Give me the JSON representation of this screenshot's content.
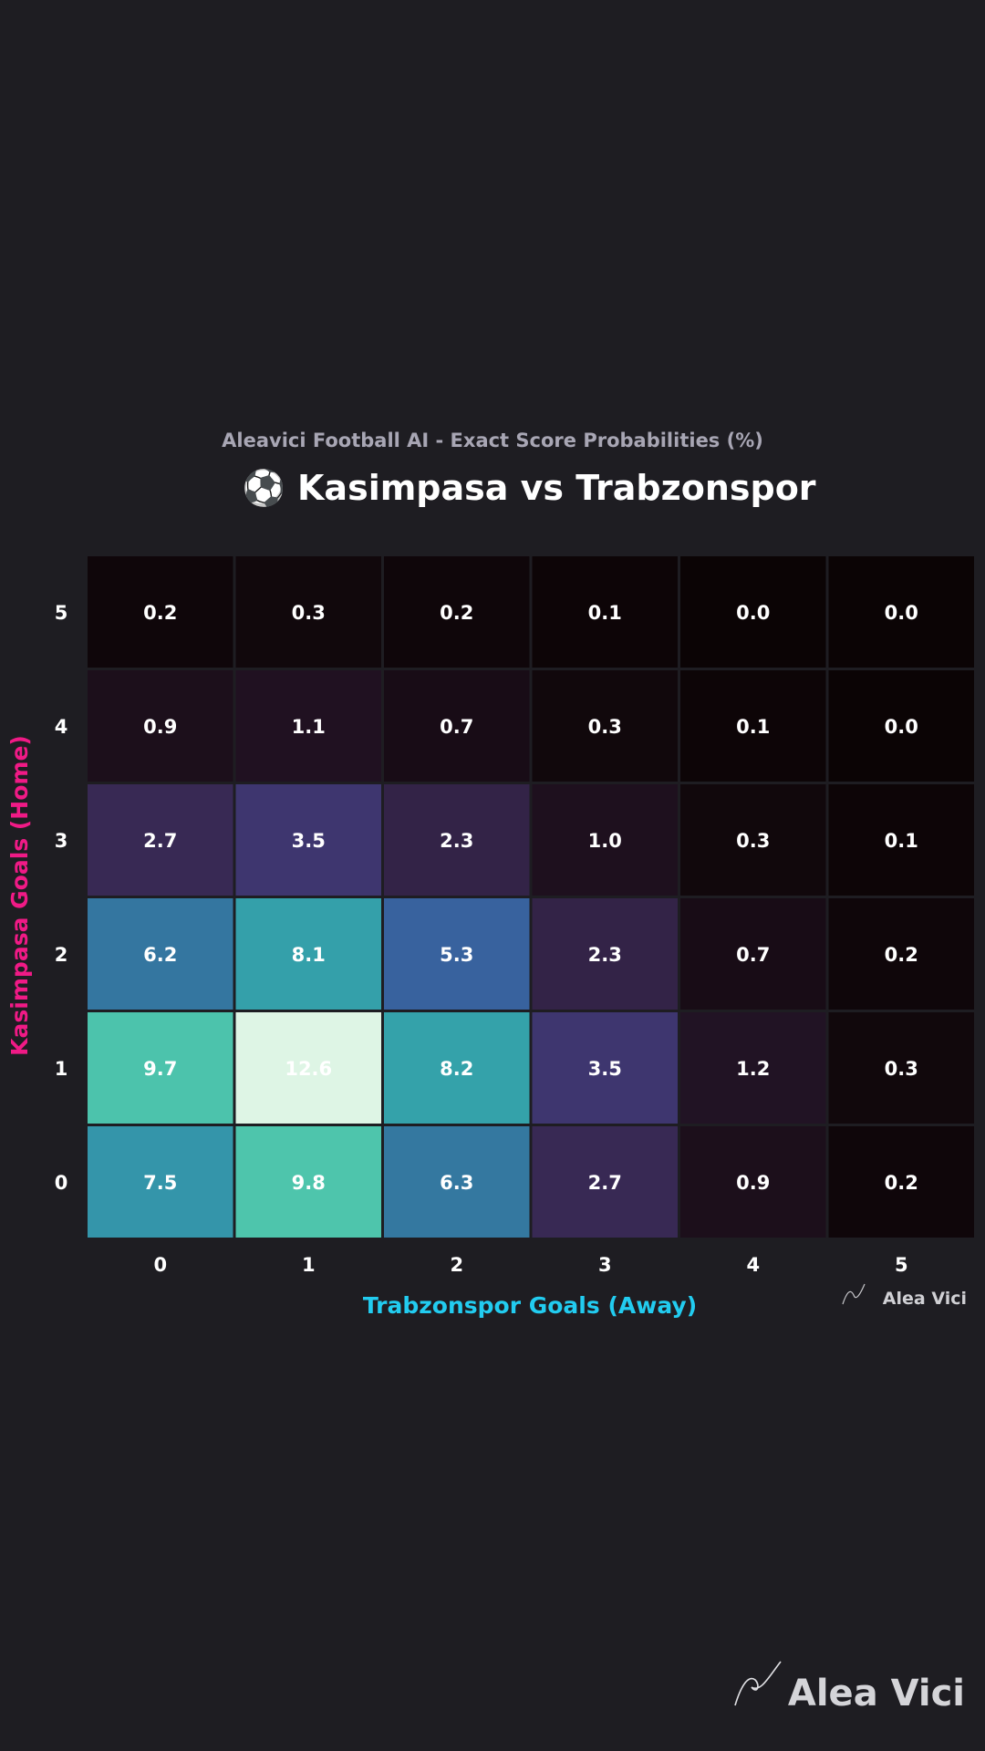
{
  "chart_data": {
    "type": "heatmap",
    "subtitle": "Aleavici Football AI - Exact Score Probabilities (%)",
    "title": "⚽ Kasimpasa vs Trabzonspor",
    "xlabel": "Trabzonspor Goals (Away)",
    "ylabel": "Kasimpasa Goals (Home)",
    "x_ticks": [
      "0",
      "1",
      "2",
      "3",
      "4",
      "5"
    ],
    "y_ticks": [
      "5",
      "4",
      "3",
      "2",
      "1",
      "0"
    ],
    "value_range": [
      0,
      12.6
    ],
    "rows": [
      {
        "home_goals": "5",
        "values": [
          0.2,
          0.3,
          0.2,
          0.1,
          0.0,
          0.0
        ],
        "labels": [
          "0.2",
          "0.3",
          "0.2",
          "0.1",
          "0.0",
          "0.0"
        ]
      },
      {
        "home_goals": "4",
        "values": [
          0.9,
          1.1,
          0.7,
          0.3,
          0.1,
          0.0
        ],
        "labels": [
          "0.9",
          "1.1",
          "0.7",
          "0.3",
          "0.1",
          "0.0"
        ]
      },
      {
        "home_goals": "3",
        "values": [
          2.7,
          3.5,
          2.3,
          1.0,
          0.3,
          0.1
        ],
        "labels": [
          "2.7",
          "3.5",
          "2.3",
          "1.0",
          "0.3",
          "0.1"
        ]
      },
      {
        "home_goals": "2",
        "values": [
          6.2,
          8.1,
          5.3,
          2.3,
          0.7,
          0.2
        ],
        "labels": [
          "6.2",
          "8.1",
          "5.3",
          "2.3",
          "0.7",
          "0.2"
        ]
      },
      {
        "home_goals": "1",
        "values": [
          9.7,
          12.6,
          8.2,
          3.5,
          1.2,
          0.3
        ],
        "labels": [
          "9.7",
          "12.6",
          "8.2",
          "3.5",
          "1.2",
          "0.3"
        ]
      },
      {
        "home_goals": "0",
        "values": [
          7.5,
          9.8,
          6.3,
          2.7,
          0.9,
          0.2
        ],
        "labels": [
          "7.5",
          "9.8",
          "6.3",
          "2.7",
          "0.9",
          "0.2"
        ]
      }
    ],
    "colormap": "mako",
    "colors": {
      "background": "#1e1d22",
      "xlabel": "#22ccf0",
      "ylabel": "#f01a86",
      "cell_border": "#1e1d22"
    }
  },
  "watermark": {
    "small_label": "Alea Vici",
    "large_label": "Alea Vici"
  }
}
